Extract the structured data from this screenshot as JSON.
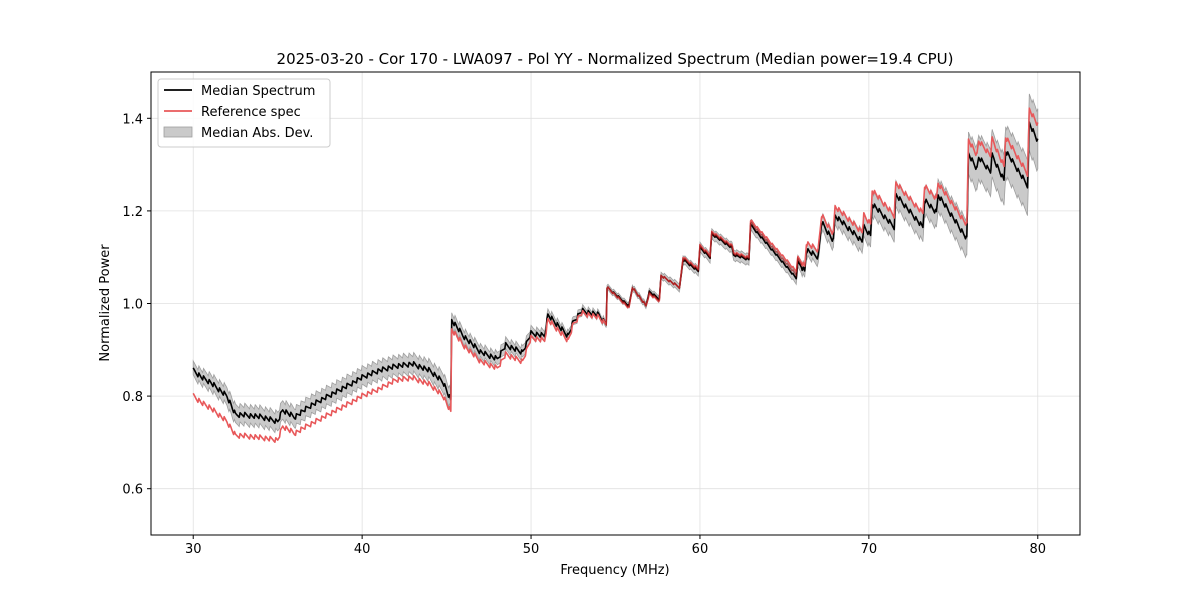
{
  "chart_data": {
    "type": "line",
    "title": "2025-03-20 - Cor 170 - LWA097 - Pol YY - Normalized Spectrum (Median power=19.4 CPU)",
    "xlabel": "Frequency (MHz)",
    "ylabel": "Normalized Power",
    "xlim": [
      27.5,
      82.5
    ],
    "ylim": [
      0.5,
      1.5
    ],
    "xticks": [
      30,
      40,
      50,
      60,
      70,
      80
    ],
    "xtick_labels": [
      "30",
      "40",
      "50",
      "60",
      "70",
      "80"
    ],
    "yticks": [
      0.6,
      0.8,
      1.0,
      1.2,
      1.4
    ],
    "ytick_labels": [
      "0.6",
      "0.8",
      "1.0",
      "1.2",
      "1.4"
    ],
    "grid": true,
    "legend_position": "top-left",
    "colors": {
      "median": "#000000",
      "reference": "#e8585a",
      "mad_fill": "#b4b4b4",
      "mad_edge": "#9e9e9e",
      "grid": "#e0e0e0"
    },
    "legend": [
      {
        "label": "Median Spectrum",
        "kind": "line",
        "color": "#000000"
      },
      {
        "label": "Reference spec",
        "kind": "line",
        "color": "#e8585a"
      },
      {
        "label": "Median Abs. Dev.",
        "kind": "patch",
        "color": "#b4b4b4"
      }
    ],
    "series": [
      {
        "name": "Median Spectrum",
        "x": [
          30.0,
          30.5,
          31.0,
          31.5,
          32.0,
          32.5,
          33.0,
          34.0,
          35.0,
          35.3,
          36.0,
          37.0,
          38.0,
          39.0,
          40.0,
          41.0,
          42.0,
          43.0,
          44.0,
          44.8,
          45.25,
          45.3,
          46.0,
          47.0,
          48.0,
          48.5,
          49.5,
          50.0,
          50.8,
          51.0,
          52.2,
          52.5,
          53.0,
          54.0,
          54.45,
          54.5,
          55.8,
          56.0,
          56.8,
          57.0,
          57.6,
          57.7,
          58.8,
          59.0,
          59.9,
          60.0,
          60.6,
          60.7,
          61.9,
          62.0,
          62.9,
          63.0,
          65.7,
          65.8,
          66.2,
          66.3,
          67.0,
          67.2,
          67.9,
          68.0,
          69.6,
          69.7,
          70.1,
          70.2,
          71.5,
          71.6,
          73.2,
          73.3,
          74.0,
          74.1,
          75.8,
          75.9,
          76.4,
          76.5,
          77.2,
          77.3,
          78.0,
          78.1,
          79.4,
          79.5,
          80.0
        ],
        "values": [
          0.855,
          0.84,
          0.83,
          0.815,
          0.8,
          0.76,
          0.76,
          0.755,
          0.745,
          0.77,
          0.755,
          0.78,
          0.8,
          0.82,
          0.84,
          0.855,
          0.865,
          0.87,
          0.855,
          0.83,
          0.79,
          0.965,
          0.93,
          0.895,
          0.88,
          0.91,
          0.895,
          0.935,
          0.93,
          0.975,
          0.93,
          0.96,
          0.985,
          0.975,
          0.955,
          1.035,
          0.995,
          1.035,
          0.995,
          1.025,
          1.01,
          1.06,
          1.035,
          1.095,
          1.07,
          1.12,
          1.1,
          1.15,
          1.12,
          1.105,
          1.095,
          1.17,
          1.055,
          1.09,
          1.07,
          1.115,
          1.1,
          1.175,
          1.135,
          1.19,
          1.135,
          1.165,
          1.145,
          1.215,
          1.165,
          1.235,
          1.165,
          1.225,
          1.195,
          1.235,
          1.14,
          1.325,
          1.29,
          1.315,
          1.285,
          1.32,
          1.265,
          1.33,
          1.255,
          1.39,
          1.35
        ]
      },
      {
        "name": "Reference spec",
        "x": [
          30.0,
          30.5,
          31.0,
          31.5,
          32.0,
          32.5,
          33.0,
          34.0,
          35.0,
          35.3,
          36.0,
          37.0,
          38.0,
          39.0,
          40.0,
          41.0,
          42.0,
          43.0,
          44.0,
          44.8,
          45.25,
          45.3,
          46.0,
          47.0,
          48.0,
          48.5,
          49.5,
          50.0,
          50.8,
          51.0,
          52.2,
          52.5,
          53.0,
          54.0,
          54.45,
          54.5,
          55.8,
          56.0,
          56.8,
          57.0,
          57.6,
          57.7,
          58.8,
          59.0,
          59.9,
          60.0,
          60.6,
          60.7,
          61.9,
          62.0,
          62.9,
          63.0,
          65.7,
          65.8,
          66.2,
          66.3,
          67.0,
          67.2,
          67.9,
          68.0,
          69.6,
          69.7,
          70.1,
          70.2,
          71.5,
          71.6,
          73.2,
          73.3,
          74.0,
          74.1,
          75.8,
          75.9,
          76.4,
          76.5,
          77.2,
          77.3,
          78.0,
          78.1,
          79.4,
          79.5,
          80.0
        ],
        "values": [
          0.8,
          0.785,
          0.775,
          0.76,
          0.745,
          0.715,
          0.715,
          0.71,
          0.705,
          0.735,
          0.72,
          0.74,
          0.76,
          0.78,
          0.8,
          0.815,
          0.835,
          0.84,
          0.825,
          0.8,
          0.765,
          0.945,
          0.91,
          0.875,
          0.86,
          0.89,
          0.875,
          0.925,
          0.92,
          0.965,
          0.92,
          0.955,
          0.98,
          0.97,
          0.955,
          1.035,
          0.99,
          1.035,
          0.995,
          1.02,
          1.005,
          1.06,
          1.035,
          1.1,
          1.075,
          1.125,
          1.105,
          1.155,
          1.125,
          1.11,
          1.1,
          1.18,
          1.07,
          1.1,
          1.08,
          1.13,
          1.115,
          1.19,
          1.15,
          1.21,
          1.155,
          1.19,
          1.17,
          1.245,
          1.19,
          1.26,
          1.195,
          1.255,
          1.225,
          1.26,
          1.17,
          1.355,
          1.32,
          1.35,
          1.32,
          1.355,
          1.295,
          1.36,
          1.28,
          1.42,
          1.385
        ]
      },
      {
        "name": "Median Abs. Dev.",
        "x": [
          30.0,
          32.5,
          35.0,
          40.0,
          45.25,
          45.3,
          50.0,
          54.5,
          57.0,
          60.0,
          63.0,
          65.7,
          68.0,
          70.0,
          73.0,
          75.8,
          75.9,
          79.4,
          80.0
        ],
        "halfwidth": [
          0.015,
          0.02,
          0.02,
          0.02,
          0.02,
          0.015,
          0.012,
          0.006,
          0.006,
          0.01,
          0.012,
          0.012,
          0.02,
          0.025,
          0.03,
          0.04,
          0.045,
          0.06,
          0.065
        ]
      }
    ]
  }
}
